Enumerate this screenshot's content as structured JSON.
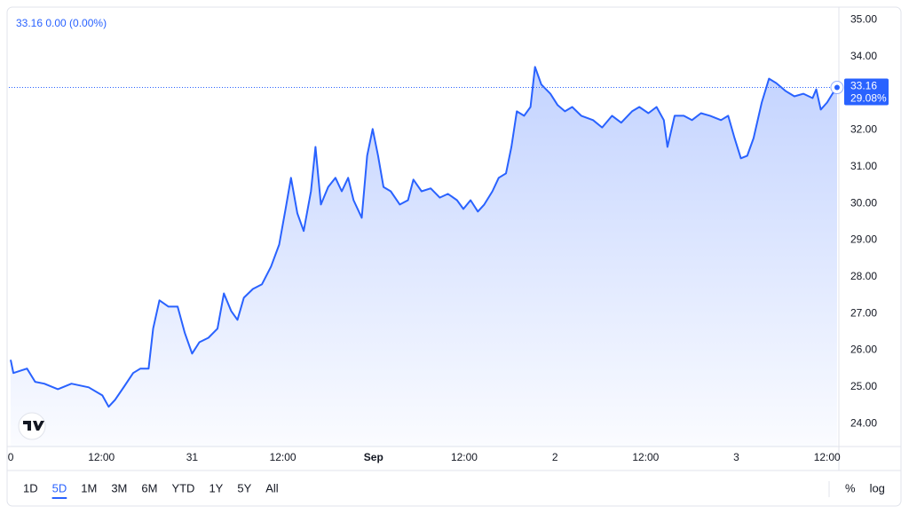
{
  "chart_data": {
    "type": "area",
    "title": "33.16 0.00 (0.00%)",
    "color": "#2962ff",
    "x": [
      0,
      0.03,
      0.18,
      0.27,
      0.37,
      0.52,
      0.67,
      0.86,
      1.01,
      1.08,
      1.15,
      1.25,
      1.35,
      1.43,
      1.52,
      1.57,
      1.64,
      1.74,
      1.84,
      1.92,
      2.0,
      2.08,
      2.18,
      2.28,
      2.35,
      2.43,
      2.5,
      2.57,
      2.67,
      2.77,
      2.87,
      2.96,
      3.03,
      3.09,
      3.16,
      3.23,
      3.31,
      3.36,
      3.42,
      3.5,
      3.58,
      3.65,
      3.72,
      3.78,
      3.87,
      3.93,
      3.99,
      4.05,
      4.11,
      4.19,
      4.29,
      4.38,
      4.44,
      4.53,
      4.63,
      4.73,
      4.82,
      4.92,
      4.99,
      5.07,
      5.15,
      5.22,
      5.31,
      5.38,
      5.46,
      5.52,
      5.58,
      5.66,
      5.73,
      5.78,
      5.85,
      5.95,
      6.03,
      6.11,
      6.19,
      6.29,
      6.42,
      6.52,
      6.63,
      6.73,
      6.85,
      6.93,
      7.03,
      7.12,
      7.2,
      7.24,
      7.32,
      7.42,
      7.51,
      7.61,
      7.71,
      7.83,
      7.91,
      7.98,
      8.05,
      8.12,
      8.19,
      8.28,
      8.36,
      8.44,
      8.54,
      8.64,
      8.74,
      8.84,
      8.88,
      8.93,
      9.0,
      9.06,
      9.11
    ],
    "values": [
      25.74,
      25.38,
      25.5,
      25.14,
      25.09,
      24.94,
      25.09,
      24.99,
      24.77,
      24.46,
      24.65,
      25.01,
      25.38,
      25.5,
      25.5,
      26.59,
      27.36,
      27.19,
      27.19,
      26.47,
      25.91,
      26.22,
      26.34,
      26.59,
      27.55,
      27.07,
      26.83,
      27.43,
      27.67,
      27.8,
      28.28,
      28.88,
      29.85,
      30.7,
      29.73,
      29.25,
      30.33,
      31.54,
      29.97,
      30.45,
      30.7,
      30.33,
      30.7,
      30.09,
      29.61,
      31.3,
      32.03,
      31.3,
      30.45,
      30.33,
      29.97,
      30.09,
      30.65,
      30.33,
      30.41,
      30.16,
      30.26,
      30.09,
      29.85,
      30.09,
      29.78,
      29.97,
      30.33,
      30.7,
      30.82,
      31.54,
      32.51,
      32.39,
      32.63,
      33.72,
      33.24,
      32.99,
      32.68,
      32.51,
      32.63,
      32.39,
      32.27,
      32.07,
      32.39,
      32.2,
      32.51,
      32.63,
      32.46,
      32.63,
      32.27,
      31.54,
      32.39,
      32.39,
      32.27,
      32.46,
      32.39,
      32.27,
      32.39,
      31.78,
      31.23,
      31.3,
      31.78,
      32.75,
      33.4,
      33.28,
      33.07,
      32.92,
      32.99,
      32.87,
      33.11,
      32.56,
      32.75,
      32.99,
      33.16
    ],
    "xlim": [
      -0.02,
      9.13
    ],
    "xticks": [
      0,
      {
        "value": 1,
        "label": "12:00"
      },
      {
        "value": 2,
        "label": "31"
      },
      {
        "value": 3,
        "label": "12:00"
      },
      {
        "value": 4,
        "label": "Sep"
      },
      {
        "value": 5,
        "label": "12:00"
      },
      {
        "value": 6,
        "label": "2"
      },
      {
        "value": 7,
        "label": "12:00"
      },
      {
        "value": 8,
        "label": "3"
      },
      {
        "value": 9,
        "label": "12:00"
      }
    ],
    "ylim": [
      23.45,
      35.35
    ],
    "yticks": [
      {
        "value": 24,
        "label": "24.00"
      },
      {
        "value": 25,
        "label": "25.00"
      },
      {
        "value": 26,
        "label": "26.00"
      },
      {
        "value": 27,
        "label": "27.00"
      },
      {
        "value": 28,
        "label": "28.00"
      },
      {
        "value": 29,
        "label": "29.00"
      },
      {
        "value": 30,
        "label": "30.00"
      },
      {
        "value": 31,
        "label": "31.00"
      },
      {
        "value": 32,
        "label": "32.00"
      },
      {
        "value": 33,
        "label": "33.00"
      },
      {
        "value": 34,
        "label": "34.00"
      },
      {
        "value": 35,
        "label": "35.00"
      }
    ],
    "grid": false,
    "price_label": [
      "33.16",
      "29.08%"
    ],
    "ranges": [
      "1D",
      "5D",
      "1M",
      "3M",
      "6M",
      "YTD",
      "1Y",
      "5Y",
      "All"
    ],
    "active_range": "5D",
    "scale_buttons": [
      "%",
      "log"
    ]
  }
}
